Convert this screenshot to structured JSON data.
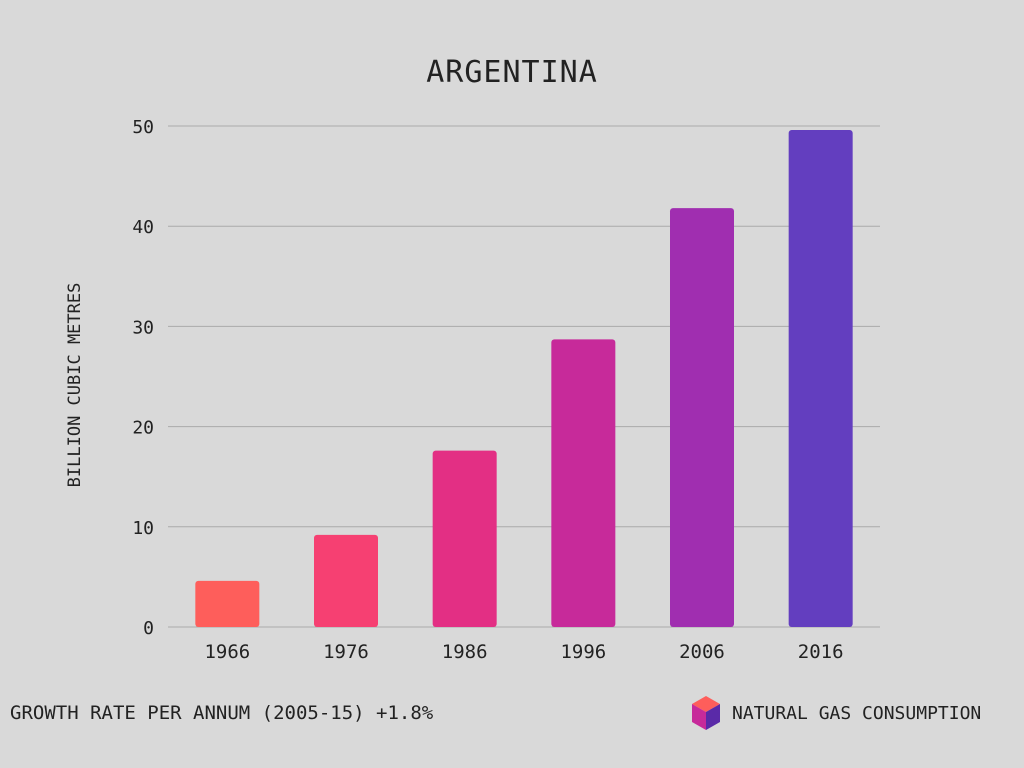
{
  "chart_data": {
    "type": "bar",
    "title": "ARGENTINA",
    "ylabel": "BILLION CUBIC METRES",
    "xlabel": "",
    "categories": [
      "1966",
      "1976",
      "1986",
      "1996",
      "2006",
      "2016"
    ],
    "values": [
      4.6,
      9.2,
      17.6,
      28.7,
      41.8,
      49.6
    ],
    "ylim": [
      0,
      50
    ],
    "yticks": [
      "0",
      "10",
      "20",
      "30",
      "40",
      "50"
    ],
    "grid": true,
    "bar_colors": [
      "#fe5e5b",
      "#f64072",
      "#e32f84",
      "#c72a9a",
      "#a02eb0",
      "#633ebf"
    ],
    "legend": {
      "label": "NATURAL GAS CONSUMPTION",
      "placement": "bottom-right",
      "icon": "cube-icon"
    },
    "annotation": "GROWTH RATE PER ANNUM (2005-15) +1.8%"
  }
}
